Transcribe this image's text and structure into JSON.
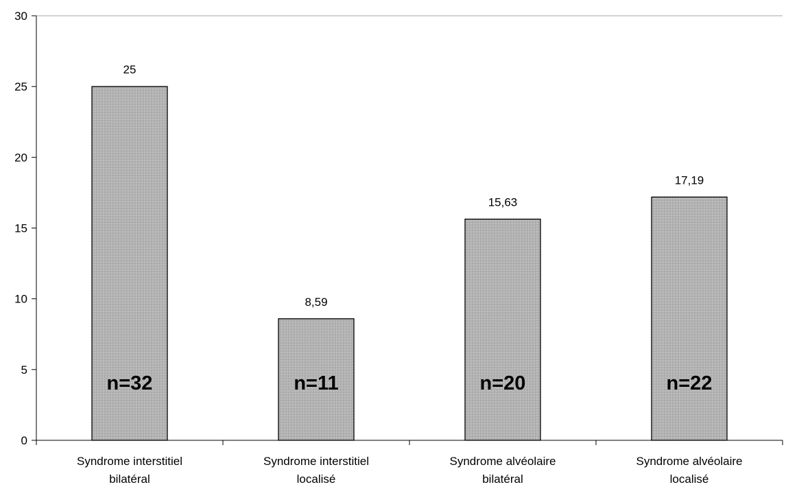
{
  "chart_data": {
    "type": "bar",
    "categories": [
      [
        "Syndrome interstitiel",
        "bilatéral"
      ],
      [
        "Syndrome interstitiel",
        "localisé"
      ],
      [
        "Syndrome alvéolaire",
        "bilatéral"
      ],
      [
        "Syndrome alvéolaire",
        "localisé"
      ]
    ],
    "values": [
      25,
      8.59,
      15.63,
      17.19
    ],
    "data_labels": [
      "25",
      "8,59",
      "15,63",
      "17,19"
    ],
    "n_labels": [
      "n=32",
      "n=11",
      "n=20",
      "n=22"
    ],
    "ylim": [
      0,
      30
    ],
    "yticks": [
      0,
      5,
      10,
      15,
      20,
      25,
      30
    ],
    "title": "",
    "xlabel": "",
    "ylabel": "",
    "grid": false,
    "bar_color": "#b3b3b3",
    "bar_border_color": "#000000"
  }
}
